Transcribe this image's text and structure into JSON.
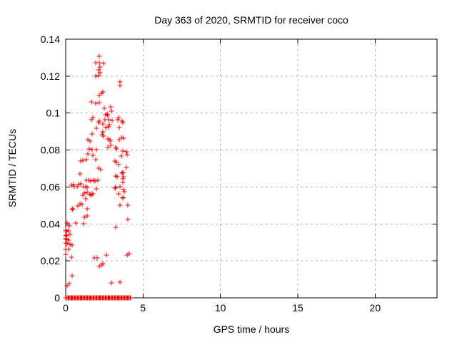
{
  "page": {
    "background": "#ffffff"
  },
  "chart_data": {
    "type": "scatter",
    "title": "Day 363 of 2020, SRMTID for receiver coco",
    "xlabel": "GPS time / hours",
    "ylabel": "SRMTID / TECUs",
    "xlim": [
      0,
      24
    ],
    "ylim": [
      0,
      0.14
    ],
    "xticks": {
      "values": [
        0,
        5,
        10,
        15,
        20
      ],
      "labels": [
        "0",
        "5",
        "10",
        "15",
        "20"
      ]
    },
    "yticks": {
      "values": [
        0,
        0.02,
        0.04,
        0.06,
        0.08,
        0.1,
        0.12,
        0.14
      ],
      "labels": [
        "0",
        "0.02",
        "0.04",
        "0.06",
        "0.08",
        "0.1",
        "0.12",
        "0.14"
      ]
    },
    "grid": true,
    "legend_position": "none",
    "marker": {
      "shape": "plus",
      "color": "#ff0000",
      "size": 7
    },
    "grid_color": "#b4b4b4",
    "axis_color": "#000000",
    "series": [
      {
        "name": "SRMTID",
        "points": [
          [
            2.18,
            0.1306
          ],
          [
            1.95,
            0.1272
          ],
          [
            2.18,
            0.1272
          ],
          [
            2.45,
            0.127
          ],
          [
            2.14,
            0.1235
          ],
          [
            2.2,
            0.1248
          ],
          [
            2.22,
            0.122
          ],
          [
            1.94,
            0.1198
          ],
          [
            2.1,
            0.1205
          ],
          [
            3.49,
            0.1169
          ],
          [
            3.49,
            0.1148
          ],
          [
            2.41,
            0.1115
          ],
          [
            2.33,
            0.1108
          ],
          [
            2.18,
            0.1095
          ],
          [
            1.95,
            0.1053
          ],
          [
            2.18,
            0.1056
          ],
          [
            1.66,
            0.106
          ],
          [
            2.49,
            0.1025
          ],
          [
            2.91,
            0.1034
          ],
          [
            2.95,
            0.1012
          ],
          [
            2.6,
            0.0991
          ],
          [
            2.66,
            0.0994
          ],
          [
            2.72,
            0.0988
          ],
          [
            1.75,
            0.0976
          ],
          [
            3.41,
            0.0976
          ],
          [
            1.68,
            0.0965
          ],
          [
            2.52,
            0.0965
          ],
          [
            2.75,
            0.0965
          ],
          [
            2.99,
            0.096
          ],
          [
            3.37,
            0.0965
          ],
          [
            2.18,
            0.0957
          ],
          [
            3.64,
            0.0957
          ],
          [
            2.14,
            0.095
          ],
          [
            3.68,
            0.095
          ],
          [
            2.41,
            0.094
          ],
          [
            2.83,
            0.0937
          ],
          [
            3.45,
            0.0922
          ],
          [
            1.98,
            0.0918
          ],
          [
            2.58,
            0.0921
          ],
          [
            2.77,
            0.0925
          ],
          [
            2.41,
            0.0899
          ],
          [
            1.71,
            0.0888
          ],
          [
            2.37,
            0.0885
          ],
          [
            2.43,
            0.0875
          ],
          [
            1.42,
            0.0857
          ],
          [
            2.72,
            0.086
          ],
          [
            2.88,
            0.0858
          ],
          [
            3.45,
            0.0857
          ],
          [
            1.55,
            0.0847
          ],
          [
            3.75,
            0.0863
          ],
          [
            3.59,
            0.0869
          ],
          [
            2.85,
            0.085
          ],
          [
            2.91,
            0.0824
          ],
          [
            1.52,
            0.0806
          ],
          [
            1.72,
            0.0801
          ],
          [
            1.98,
            0.0801
          ],
          [
            2.71,
            0.0815
          ],
          [
            3.22,
            0.0812
          ],
          [
            3.27,
            0.0806
          ],
          [
            3.68,
            0.0796
          ],
          [
            3.94,
            0.0789
          ],
          [
            1.44,
            0.078
          ],
          [
            1.75,
            0.077
          ],
          [
            3.95,
            0.0777
          ],
          [
            3.6,
            0.0768
          ],
          [
            0.96,
            0.0742
          ],
          [
            1.09,
            0.0744
          ],
          [
            1.32,
            0.0747
          ],
          [
            1.95,
            0.0747
          ],
          [
            3.17,
            0.0742
          ],
          [
            3.26,
            0.0734
          ],
          [
            3.43,
            0.0721
          ],
          [
            3.9,
            0.0706
          ],
          [
            2.25,
            0.0695
          ],
          [
            2.14,
            0.0703
          ],
          [
            0.93,
            0.0672
          ],
          [
            3.63,
            0.0674
          ],
          [
            3.71,
            0.0677
          ],
          [
            3.22,
            0.0661
          ],
          [
            3.3,
            0.0657
          ],
          [
            3.72,
            0.0657
          ],
          [
            1.32,
            0.0637
          ],
          [
            1.48,
            0.0637
          ],
          [
            1.6,
            0.0634
          ],
          [
            1.79,
            0.0637
          ],
          [
            1.91,
            0.0634
          ],
          [
            2.06,
            0.0637
          ],
          [
            3.71,
            0.0644
          ],
          [
            0.83,
            0.0613
          ],
          [
            0.96,
            0.0618
          ],
          [
            0.49,
            0.0613
          ],
          [
            0.37,
            0.0608
          ],
          [
            3.71,
            0.0626
          ],
          [
            0.57,
            0.0602
          ],
          [
            0.72,
            0.0602
          ],
          [
            1.14,
            0.0602
          ],
          [
            1.29,
            0.06
          ],
          [
            1.37,
            0.0597
          ],
          [
            1.98,
            0.059
          ],
          [
            3.17,
            0.0593
          ],
          [
            3.72,
            0.0587
          ],
          [
            3.22,
            0.0597
          ],
          [
            3.49,
            0.0603
          ],
          [
            1.21,
            0.0567
          ],
          [
            1.4,
            0.0571
          ],
          [
            1.65,
            0.0562
          ],
          [
            1.75,
            0.0562
          ],
          [
            3.4,
            0.0564
          ],
          [
            3.8,
            0.0575
          ],
          [
            1.11,
            0.0554
          ],
          [
            1.57,
            0.0558
          ],
          [
            1.68,
            0.0554
          ],
          [
            3.68,
            0.0545
          ],
          [
            0.91,
            0.051
          ],
          [
            0.8,
            0.0498
          ],
          [
            1.29,
            0.0536
          ],
          [
            3.71,
            0.0539
          ],
          [
            1.06,
            0.0507
          ],
          [
            3.49,
            0.0503
          ],
          [
            4.03,
            0.05
          ],
          [
            1.37,
            0.0481
          ],
          [
            0.45,
            0.0481
          ],
          [
            0.4,
            0.0478
          ],
          [
            1.21,
            0.0436
          ],
          [
            1.4,
            0.0445
          ],
          [
            4.03,
            0.0423
          ],
          [
            0.09,
            0.0406
          ],
          [
            0.66,
            0.0406
          ],
          [
            1.15,
            0.0403
          ],
          [
            0.24,
            0.0388
          ],
          [
            3.22,
            0.0381
          ],
          [
            0.02,
            0.0365
          ],
          [
            0.05,
            0.0359
          ],
          [
            0.2,
            0.0363
          ],
          [
            0.02,
            0.0337
          ],
          [
            0.06,
            0.0339
          ],
          [
            0.28,
            0.0342
          ],
          [
            0.02,
            0.0319
          ],
          [
            0.04,
            0.0315
          ],
          [
            0.2,
            0.0311
          ],
          [
            0.02,
            0.0296
          ],
          [
            0.09,
            0.0294
          ],
          [
            0.28,
            0.0288
          ],
          [
            0.4,
            0.0284
          ],
          [
            0.02,
            0.0262
          ],
          [
            0.2,
            0.0262
          ],
          [
            0.02,
            0.0236
          ],
          [
            0.36,
            0.0221
          ],
          [
            1.83,
            0.0217
          ],
          [
            2.02,
            0.0217
          ],
          [
            2.63,
            0.023
          ],
          [
            3.95,
            0.023
          ],
          [
            4.12,
            0.0239
          ],
          [
            2.17,
            0.017
          ],
          [
            2.32,
            0.0179
          ],
          [
            2.41,
            0.0185
          ],
          [
            0.42,
            0.0121
          ],
          [
            2.94,
            0.008
          ],
          [
            3.5,
            0.0086
          ],
          [
            0.11,
            0.0067
          ],
          [
            0.22,
            0.0076
          ],
          [
            0.0,
            0.0
          ],
          [
            0.06,
            0.0
          ],
          [
            0.12,
            0.0
          ],
          [
            0.18,
            0.0
          ],
          [
            0.24,
            0.0
          ],
          [
            0.3,
            0.0
          ],
          [
            0.36,
            0.0
          ],
          [
            0.42,
            0.0
          ],
          [
            0.48,
            0.0
          ],
          [
            0.54,
            0.0
          ],
          [
            0.6,
            0.0
          ],
          [
            0.66,
            0.0
          ],
          [
            0.72,
            0.0
          ],
          [
            0.78,
            0.0
          ],
          [
            0.84,
            0.0
          ],
          [
            0.9,
            0.0
          ],
          [
            0.96,
            0.0
          ],
          [
            1.02,
            0.0
          ],
          [
            1.08,
            0.0
          ],
          [
            1.14,
            0.0
          ],
          [
            1.2,
            0.0
          ],
          [
            1.26,
            0.0
          ],
          [
            1.32,
            0.0
          ],
          [
            1.38,
            0.0
          ],
          [
            1.44,
            0.0
          ],
          [
            1.5,
            0.0
          ],
          [
            1.56,
            0.0
          ],
          [
            1.62,
            0.0
          ],
          [
            1.68,
            0.0
          ],
          [
            1.74,
            0.0
          ],
          [
            1.8,
            0.0
          ],
          [
            1.86,
            0.0
          ],
          [
            1.92,
            0.0
          ],
          [
            1.98,
            0.0
          ],
          [
            2.04,
            0.0
          ],
          [
            2.1,
            0.0
          ],
          [
            2.16,
            0.0
          ],
          [
            2.22,
            0.0
          ],
          [
            2.28,
            0.0
          ],
          [
            2.34,
            0.0
          ],
          [
            2.4,
            0.0
          ],
          [
            2.46,
            0.0
          ],
          [
            2.52,
            0.0
          ],
          [
            2.58,
            0.0
          ],
          [
            2.64,
            0.0
          ],
          [
            2.7,
            0.0
          ],
          [
            2.76,
            0.0
          ],
          [
            2.82,
            0.0
          ],
          [
            2.88,
            0.0
          ],
          [
            2.94,
            0.0
          ],
          [
            3.0,
            0.0
          ],
          [
            3.06,
            0.0
          ],
          [
            3.12,
            0.0
          ],
          [
            3.18,
            0.0
          ],
          [
            3.24,
            0.0
          ],
          [
            3.3,
            0.0
          ],
          [
            3.36,
            0.0
          ],
          [
            3.42,
            0.0
          ],
          [
            3.48,
            0.0
          ],
          [
            3.54,
            0.0
          ],
          [
            3.6,
            0.0
          ],
          [
            3.66,
            0.0
          ],
          [
            3.72,
            0.0
          ],
          [
            3.78,
            0.0
          ],
          [
            3.84,
            0.0
          ],
          [
            3.9,
            0.0
          ],
          [
            3.96,
            0.0
          ],
          [
            4.02,
            0.0
          ],
          [
            4.08,
            0.0
          ],
          [
            4.14,
            0.0
          ],
          [
            4.2,
            0.0
          ]
        ]
      }
    ]
  }
}
